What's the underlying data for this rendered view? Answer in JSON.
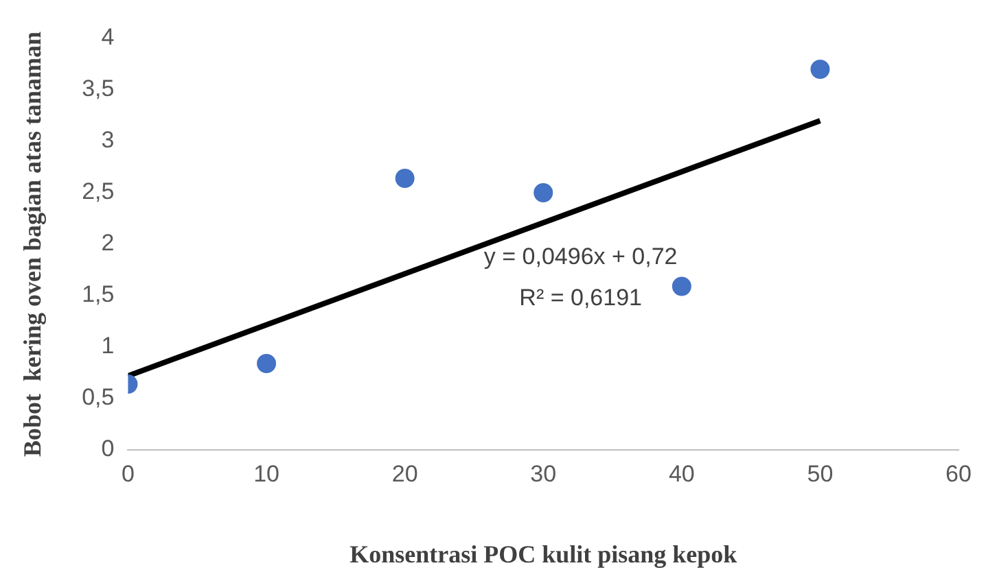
{
  "chart_data": {
    "type": "scatter",
    "xlabel": "Konsentrasi POC kulit pisang kepok",
    "ylabel": "Bobot  kering oven bagian atas tanaman",
    "series": [
      {
        "type": "scatter",
        "color": "#4472c4",
        "x": [
          0,
          10,
          20,
          30,
          40,
          50
        ],
        "values": [
          0.64,
          0.84,
          2.64,
          2.5,
          1.59,
          3.7
        ],
        "marker": "circle"
      },
      {
        "type": "line",
        "color": "#000000",
        "x": [
          0,
          50
        ],
        "values": [
          0.72,
          3.2
        ],
        "marker": "none",
        "line_style": "solid"
      }
    ],
    "xlim": [
      0,
      60
    ],
    "xticks": [
      0,
      10,
      20,
      30,
      40,
      50,
      60
    ],
    "ylim": [
      0,
      4
    ],
    "yticks": [
      0,
      {
        "value": 0.5,
        "label": "0,5"
      },
      1,
      {
        "value": 1.5,
        "label": "1,5"
      },
      2,
      {
        "value": 2.5,
        "label": "2,5"
      },
      3,
      {
        "value": 3.5,
        "label": "3,5"
      },
      4
    ],
    "annotations": [
      "y = 0,0496x + 0,72",
      "R² = 0,6191"
    ],
    "grid": false,
    "legend": false
  }
}
